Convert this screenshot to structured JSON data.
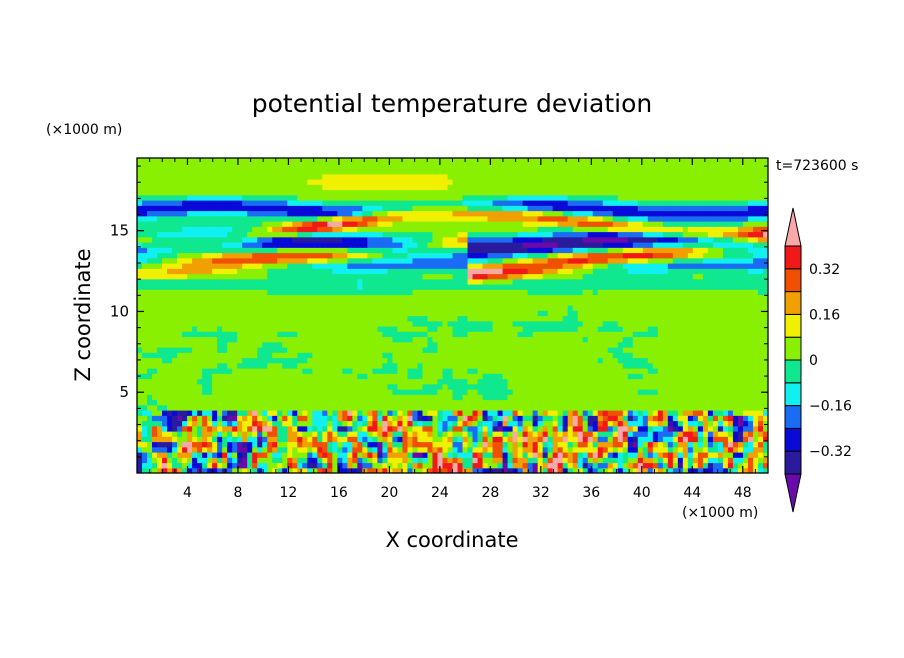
{
  "chart_data": {
    "type": "heatmap",
    "title": "potential temperature deviation",
    "xlabel": "X coordinate",
    "ylabel": "Z coordinate",
    "x_unit": "(×1000 m)",
    "y_unit": "(×1000 m)",
    "time_label": "t=723600 s",
    "xlim": [
      0,
      50
    ],
    "ylim": [
      0,
      19.5
    ],
    "x_ticks": [
      {
        "value": 4,
        "label": "4"
      },
      {
        "value": 8,
        "label": "8"
      },
      {
        "value": 12,
        "label": "12"
      },
      {
        "value": 16,
        "label": "16"
      },
      {
        "value": 20,
        "label": "20"
      },
      {
        "value": 24,
        "label": "24"
      },
      {
        "value": 28,
        "label": "28"
      },
      {
        "value": 32,
        "label": "32"
      },
      {
        "value": 36,
        "label": "36"
      },
      {
        "value": 40,
        "label": "40"
      },
      {
        "value": 44,
        "label": "44"
      },
      {
        "value": 48,
        "label": "48"
      }
    ],
    "y_ticks": [
      {
        "value": 5,
        "label": "5"
      },
      {
        "value": 10,
        "label": "10"
      },
      {
        "value": 15,
        "label": "15"
      }
    ],
    "colorbar": {
      "levels": [
        -0.4,
        -0.32,
        -0.24,
        -0.16,
        -0.08,
        0,
        0.08,
        0.16,
        0.24,
        0.32,
        0.4
      ],
      "colors": [
        "#6a0aa8",
        "#2a1a9e",
        "#0a0ad8",
        "#1a6cf4",
        "#10f0f0",
        "#10e890",
        "#88f000",
        "#f0f000",
        "#f0a000",
        "#f05000",
        "#f01818",
        "#f8a8a8"
      ],
      "tick_labels": [
        {
          "value": 0.32,
          "label": "0.32"
        },
        {
          "value": 0.16,
          "label": "0.16"
        },
        {
          "value": 0,
          "label": "0"
        },
        {
          "value": -0.16,
          "label": "−0.16"
        },
        {
          "value": -0.32,
          "label": "−0.32"
        }
      ]
    },
    "field_features": [
      {
        "desc": "background near-neutral",
        "value": 0.02
      },
      {
        "desc": "upper layer 17-19 km",
        "z": [
          16.8,
          19.5
        ],
        "value": 0.06
      },
      {
        "desc": "cold band",
        "z": [
          15.5,
          17.2
        ],
        "value": -0.3
      },
      {
        "desc": "warm filament",
        "z": [
          14.7,
          16.7
        ],
        "value": 0.38
      },
      {
        "desc": "cold core",
        "z": [
          13.3,
          15.2
        ],
        "value": -0.36
      },
      {
        "desc": "warm lower filament",
        "z": [
          11.0,
          14.0
        ],
        "value": 0.34
      },
      {
        "desc": "cold band",
        "z": [
          12.2,
          13.5
        ],
        "value": -0.2
      },
      {
        "desc": "cool thin layer",
        "z": [
          11.3,
          12.0
        ],
        "value": -0.08
      },
      {
        "desc": "boundary-layer turbulence",
        "z": [
          0,
          3.8
        ],
        "value_range": [
          -0.4,
          0.4
        ]
      }
    ]
  }
}
